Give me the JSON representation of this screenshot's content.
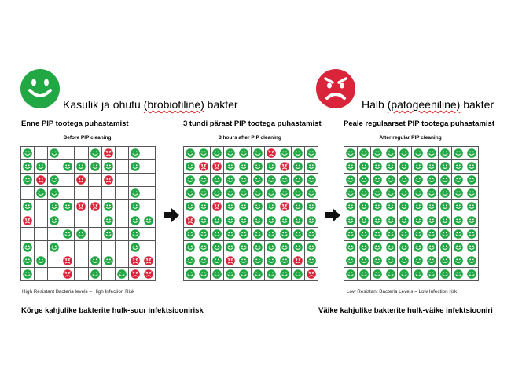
{
  "legend": {
    "good_prefix": "Kasulik ja ohutu ",
    "good_squiggle": "(brobiotiline)",
    "good_suffix": " bakter",
    "bad_prefix": "Halb ",
    "bad_squiggle": "(patogeeniline)",
    "bad_suffix": " bakter"
  },
  "colors": {
    "good": "#22a745",
    "bad": "#d9243a"
  },
  "icons": {
    "good": "smiley-face-icon",
    "bad": "angry-face-icon",
    "arrow": "arrow-right-icon"
  },
  "panels": [
    {
      "caption": "Enne PIP tootega puhastamist",
      "title": "Before PIP cleaning",
      "footnote": "High Resistant Bacteria levels = High Infection Risk",
      "grid": [
        "G.G..GR.G.",
        "GG.GGGG.G.",
        "GRG.R.R...",
        ".GG.....G.",
        "G.GGRRG.G.",
        "R.G...G.GG",
        "...GG.G.G.",
        "G.G.....G.",
        "GG.R.GG.RR",
        "G..R.G.GRR"
      ]
    },
    {
      "caption": "3 tundi pärast PIP tootega puhastamist",
      "title": "3 hours after PIP cleaning",
      "footnote": "",
      "grid": [
        "GGGGGGRGGG",
        "GRRGGGGRGG",
        "GGGGGGGGGG",
        "GGGGGGGGGG",
        "GGRGGGGRGG",
        "RGGGGGGGGG",
        "GGGGGGGGGG",
        "GGGGGGGGGG",
        "GGGRGGGGRG",
        "GGGGGGGGGR"
      ]
    },
    {
      "caption": "Peale regulaarset PIP tootega puhastamist",
      "title": "After regular PIP cleaning",
      "footnote": "Low Resistant Bacteria Levels = Low Infection risk",
      "grid": [
        "GGGGGGGGGG",
        "GGGGGGGGGG",
        "GGGGGGGGGG",
        "GGGGGGGGGG",
        "GGGGGGGGGG",
        "GGGGGGGGGG",
        "GGGGGGGGGG",
        "GGGGGGGGGG",
        "GGGGGGGGGG",
        "GGGGGGGGGG"
      ]
    }
  ],
  "bottom": {
    "left": "Kõrge kahjulike bakterite hulk-suur infektsioonirisk",
    "right": "Väike kahjulike bakterite hulk-väike infektsiooniri"
  }
}
